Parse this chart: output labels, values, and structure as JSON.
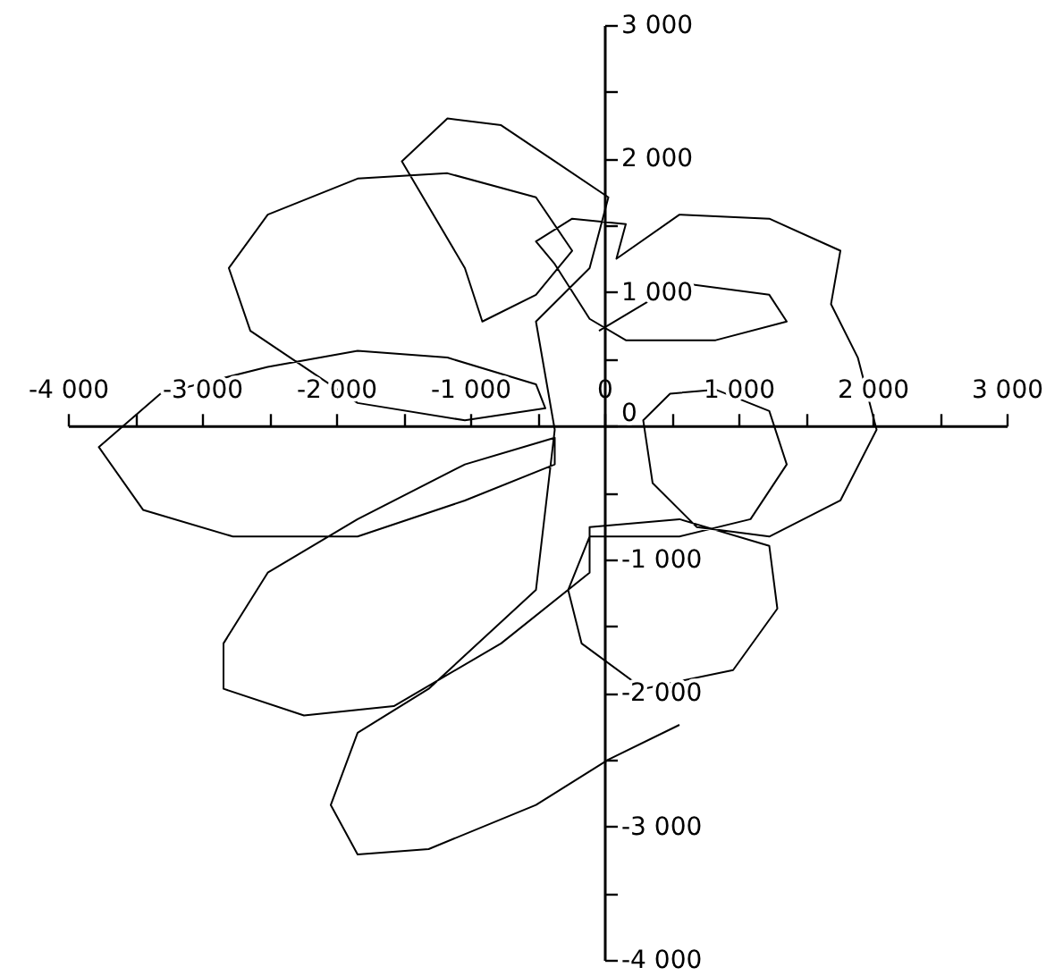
{
  "chart_data": {
    "type": "line",
    "color": "#000000",
    "x": [
      -40,
      560,
      1230,
      1360,
      830,
      160,
      -110,
      -370,
      -510,
      -240,
      160,
      90,
      560,
      1230,
      1760,
      1690,
      1890,
      2030,
      1760,
      1230,
      690,
      360,
      290,
      490,
      830,
      1230,
      1360,
      1090,
      560,
      -110,
      -270,
      -170,
      290,
      960,
      1290,
      1230,
      560,
      -110,
      -110,
      -770,
      -1570,
      -2240,
      -2840,
      -2840,
      -2510,
      -1840,
      -1040,
      -370,
      -370,
      -1040,
      -1840,
      -2240,
      -2770,
      -3440,
      -3770,
      -3310,
      -2510,
      -1840,
      -1170,
      -510,
      -440,
      -1040,
      -1840,
      -2640,
      -2800,
      -2510,
      -1840,
      -1170,
      -510,
      -240,
      -510,
      -910,
      -1040,
      -1510,
      -1170,
      -770,
      -370,
      30,
      -110,
      -510,
      -370,
      -510,
      -1310,
      -1840,
      -2040,
      -1840,
      -1310,
      -510,
      30,
      560
    ],
    "values": [
      710,
      1070,
      980,
      780,
      640,
      640,
      800,
      1210,
      1380,
      1550,
      1510,
      1250,
      1580,
      1550,
      1310,
      910,
      510,
      -30,
      -560,
      -830,
      -760,
      -430,
      40,
      240,
      270,
      110,
      -290,
      -700,
      -830,
      -830,
      -1230,
      -1630,
      -1970,
      -1830,
      -1370,
      -900,
      -700,
      -760,
      -1100,
      -1630,
      -2100,
      -2170,
      -1970,
      -1630,
      -1100,
      -700,
      -290,
      -90,
      -290,
      -560,
      -830,
      -830,
      -830,
      -630,
      -160,
      240,
      440,
      560,
      510,
      310,
      130,
      40,
      170,
      710,
      1180,
      1580,
      1850,
      1890,
      1710,
      1310,
      980,
      780,
      1180,
      1980,
      2300,
      2250,
      1980,
      1710,
      1180,
      780,
      -30,
      -1230,
      -1970,
      -2300,
      -2840,
      -3210,
      -3170,
      -2840,
      -2500,
      -2240
    ],
    "xlim": [
      -4000,
      3000
    ],
    "ylim": [
      -4000,
      3000
    ],
    "xticks": [
      {
        "value": -4000,
        "label": "-4 000"
      },
      {
        "value": -3500,
        "label": null
      },
      {
        "value": -3000,
        "label": "-3 000"
      },
      {
        "value": -2500,
        "label": null
      },
      {
        "value": -2000,
        "label": "-2 000"
      },
      {
        "value": -1500,
        "label": null
      },
      {
        "value": -1000,
        "label": "-1 000"
      },
      {
        "value": -500,
        "label": null
      },
      0,
      {
        "value": 500,
        "label": null
      },
      {
        "value": 1000,
        "label": "1 000"
      },
      {
        "value": 1500,
        "label": null
      },
      {
        "value": 2000,
        "label": "2 000"
      },
      {
        "value": 2500,
        "label": null
      },
      {
        "value": 3000,
        "label": "3 000"
      }
    ],
    "yticks": [
      {
        "value": 3000,
        "label": "3 000"
      },
      {
        "value": 2500,
        "label": null
      },
      {
        "value": 2000,
        "label": "2 000"
      },
      {
        "value": 1500,
        "label": null
      },
      {
        "value": 1000,
        "label": "1 000"
      },
      {
        "value": 500,
        "label": null
      },
      0,
      {
        "value": -500,
        "label": null
      },
      {
        "value": -1000,
        "label": "-1 000"
      },
      {
        "value": -1500,
        "label": null
      },
      {
        "value": -2000,
        "label": "-2 000"
      },
      {
        "value": -2500,
        "label": null
      },
      {
        "value": -3000,
        "label": "-3 000"
      },
      {
        "value": -3500,
        "label": null
      },
      {
        "value": -4000,
        "label": "-4 000"
      }
    ]
  }
}
